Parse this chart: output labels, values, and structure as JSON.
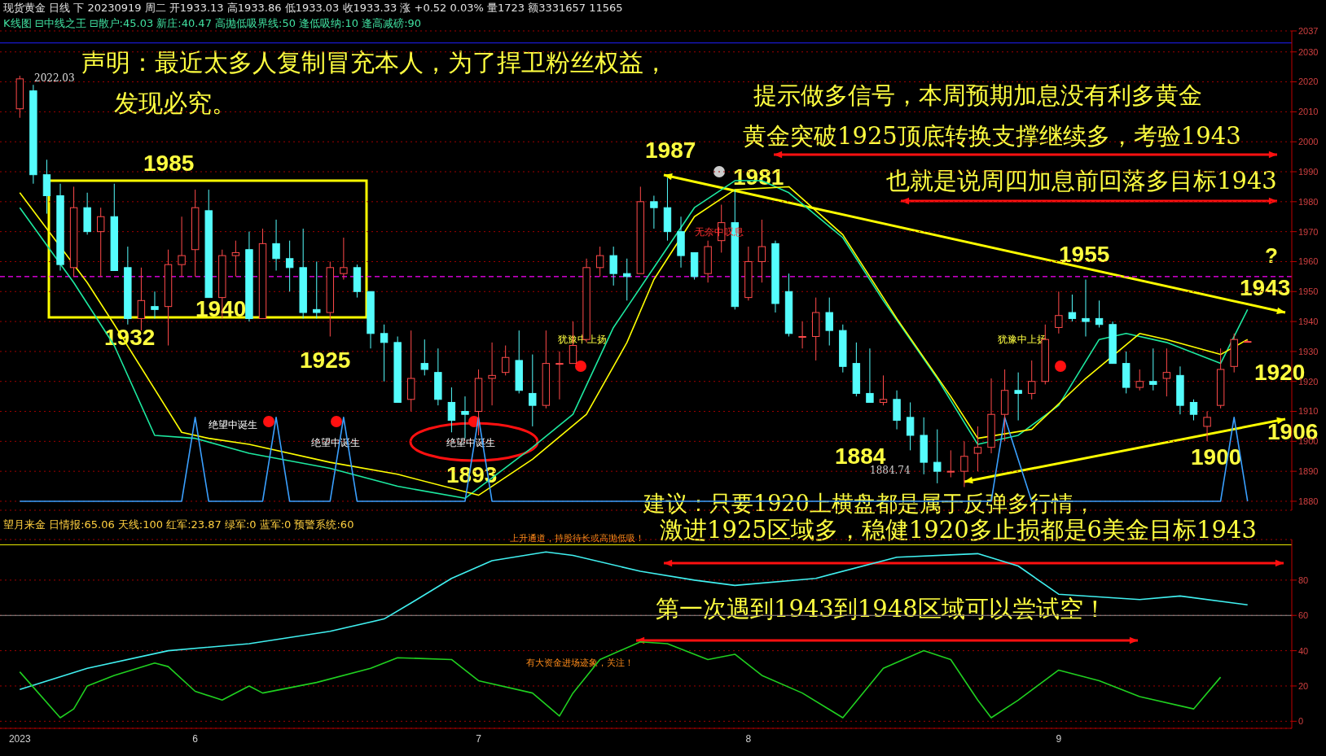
{
  "chart_data": [
    {
      "type": "candlestick",
      "title": "现货黄金 日线 下 20230919 周二 开1933.13 高1933.86 低1933.03 收1933.33 涨 +0.52 0.03% 量1723 额3331657 11565",
      "subtitle": "K线图 ⊟中线之王 ⊟散户:45.03 新庄:40.47 高抛低吸界线:50 逢低吸纳:10 逢高减磅:90",
      "categories": [
        null,
        null,
        null,
        null,
        null,
        null,
        null,
        null,
        null,
        null,
        null,
        null,
        null,
        null,
        null,
        null,
        null,
        null,
        null,
        null,
        null,
        null,
        null,
        null,
        null,
        null,
        null,
        null,
        null,
        null,
        null,
        null,
        null,
        null,
        null,
        null,
        null,
        null,
        null,
        null,
        null,
        null,
        null,
        null,
        null,
        null,
        null,
        null,
        null,
        null,
        null,
        null,
        null,
        null,
        null,
        null,
        null,
        null,
        null,
        null,
        null,
        null,
        null,
        null,
        null,
        null,
        null,
        null,
        null,
        null,
        null,
        null,
        null,
        null,
        null,
        null,
        null,
        null,
        null,
        null,
        null,
        null,
        null,
        null,
        null,
        null,
        null,
        null,
        null,
        null,
        null,
        null
      ],
      "ohlc": [
        [
          2011,
          2022.03,
          2008,
          2021
        ],
        [
          2017,
          2019,
          1986,
          1989
        ],
        [
          1989,
          1994,
          1976,
          1982
        ],
        [
          1982,
          1986,
          1957,
          1959
        ],
        [
          1958,
          1985,
          1955,
          1978
        ],
        [
          1978,
          1983,
          1969,
          1970
        ],
        [
          1970,
          1978,
          1955,
          1975
        ],
        [
          1975,
          1986,
          1957,
          1957
        ],
        [
          1958,
          1965,
          1939,
          1941
        ],
        [
          1941,
          1958,
          1937,
          1947
        ],
        [
          1945,
          1950,
          1941,
          1944
        ],
        [
          1945,
          1964,
          1932,
          1959
        ],
        [
          1959,
          1975,
          1955,
          1962
        ],
        [
          1964,
          1984,
          1955,
          1978
        ],
        [
          1977,
          1984,
          1948,
          1948
        ],
        [
          1948,
          1964,
          1941,
          1962
        ],
        [
          1962,
          1967,
          1955,
          1963
        ],
        [
          1964,
          1970,
          1940,
          1941
        ],
        [
          1941,
          1971,
          1941,
          1966
        ],
        [
          1966,
          1974,
          1957,
          1961
        ],
        [
          1961,
          1967,
          1950,
          1958
        ],
        [
          1958,
          1971,
          1941,
          1943
        ],
        [
          1944,
          1960,
          1941,
          1943
        ],
        [
          1943,
          1960,
          1935,
          1958
        ],
        [
          1956,
          1968,
          1954,
          1958
        ],
        [
          1958,
          1959,
          1948,
          1950
        ],
        [
          1950,
          1950,
          1931,
          1936
        ],
        [
          1936,
          1939,
          1920,
          1933
        ],
        [
          1933,
          1935,
          1913,
          1913
        ],
        [
          1914,
          1937,
          1910,
          1921
        ],
        [
          1926,
          1934,
          1922,
          1924
        ],
        [
          1923,
          1931,
          1912,
          1914
        ],
        [
          1913,
          1918,
          1903,
          1907
        ],
        [
          1910,
          1915,
          1901,
          1909
        ],
        [
          1910,
          1924,
          1902,
          1921
        ],
        [
          1921,
          1933,
          1912,
          1922
        ],
        [
          1923,
          1932,
          1922,
          1928
        ],
        [
          1927,
          1937,
          1916,
          1917
        ],
        [
          1916,
          1929,
          1905,
          1912
        ],
        [
          1912,
          1937,
          1911,
          1926
        ],
        [
          1926,
          1930,
          1914,
          1926
        ],
        [
          1926,
          1940,
          1926,
          1932
        ],
        [
          1934,
          1961,
          1933,
          1958
        ],
        [
          1958,
          1965,
          1955,
          1962
        ],
        [
          1962,
          1965,
          1952,
          1956
        ],
        [
          1956,
          1961,
          1947,
          1955
        ],
        [
          1956,
          1985,
          1956,
          1980
        ],
        [
          1980,
          1982,
          1971,
          1978
        ],
        [
          1978,
          1988,
          1967,
          1970
        ],
        [
          1970,
          1975,
          1958,
          1962
        ],
        [
          1963,
          1963,
          1954,
          1955
        ],
        [
          1956,
          1967,
          1953,
          1965
        ],
        [
          1967,
          1979,
          1963,
          1973
        ],
        [
          1973,
          1984,
          1944,
          1945
        ],
        [
          1948,
          1965,
          1947,
          1960
        ],
        [
          1960,
          1974,
          1953,
          1965
        ],
        [
          1966,
          1967,
          1943,
          1946
        ],
        [
          1950,
          1956,
          1935,
          1936
        ],
        [
          1935,
          1940,
          1931,
          1935
        ],
        [
          1935,
          1948,
          1927,
          1943
        ],
        [
          1943,
          1948,
          1932,
          1937
        ],
        [
          1937,
          1939,
          1923,
          1925
        ],
        [
          1926,
          1933,
          1915,
          1916
        ],
        [
          1916,
          1931,
          1913,
          1913
        ],
        [
          1913,
          1922,
          1912,
          1914
        ],
        [
          1914,
          1917,
          1904,
          1907
        ],
        [
          1908,
          1913,
          1897,
          1902
        ],
        [
          1902,
          1908,
          1889,
          1893
        ],
        [
          1893,
          1904,
          1886,
          1890
        ],
        [
          1890,
          1897,
          1888,
          1890
        ],
        [
          1890,
          1900,
          1884.74,
          1895
        ],
        [
          1896,
          1905,
          1890,
          1898
        ],
        [
          1898,
          1921,
          1896,
          1909
        ],
        [
          1909,
          1924,
          1900,
          1917
        ],
        [
          1917,
          1923,
          1907,
          1916
        ],
        [
          1916,
          1927,
          1914,
          1920
        ],
        [
          1920,
          1939,
          1919,
          1934
        ],
        [
          1938,
          1950,
          1936,
          1942
        ],
        [
          1943,
          1949,
          1940,
          1941
        ],
        [
          1941,
          1954,
          1935,
          1940
        ],
        [
          1941,
          1947,
          1938,
          1939
        ],
        [
          1939,
          1940,
          1926,
          1926
        ],
        [
          1926,
          1930,
          1916,
          1918
        ],
        [
          1918,
          1924,
          1917,
          1920
        ],
        [
          1920,
          1931,
          1917,
          1919
        ],
        [
          1921,
          1931,
          1915,
          1923
        ],
        [
          1922,
          1925,
          1909,
          1912
        ],
        [
          1913,
          1914,
          1907,
          1909
        ],
        [
          1905,
          1910,
          1900,
          1908
        ],
        [
          1912,
          1931,
          1911,
          1924
        ],
        [
          1925,
          1936,
          1923,
          1934
        ],
        [
          1933.13,
          1933.86,
          1933.03,
          1933.33
        ]
      ],
      "series": [
        {
          "type": "line",
          "color": "#1de9a0",
          "values": [
            1978,
            null,
            null,
            null,
            1953,
            null,
            null,
            1932,
            null,
            null,
            1902,
            null,
            null,
            1901,
            null,
            null,
            null,
            1896,
            null,
            null,
            null,
            null,
            null,
            1891,
            null,
            null,
            null,
            null,
            1885,
            null,
            null,
            null,
            null,
            1881,
            null,
            null,
            null,
            null,
            1898,
            null,
            null,
            1909,
            null,
            null,
            1938,
            null,
            null,
            1958,
            null,
            null,
            1978,
            null,
            null,
            1987,
            null,
            1987,
            null,
            1983,
            null,
            null,
            null,
            1968,
            null,
            null,
            1947,
            null,
            null,
            null,
            1921,
            null,
            null,
            1899,
            null,
            null,
            1902,
            null,
            null,
            1912,
            null,
            null,
            1934,
            null,
            1936,
            null,
            null,
            1933,
            null,
            null,
            null,
            1926,
            null,
            1944
          ]
        },
        {
          "type": "line",
          "color": "#ffff00",
          "values": [
            1983,
            null,
            null,
            null,
            null,
            1953,
            null,
            1939,
            null,
            null,
            null,
            null,
            1903,
            null,
            1901,
            null,
            null,
            1899,
            null,
            null,
            null,
            null,
            null,
            1893,
            null,
            null,
            null,
            null,
            1889,
            null,
            null,
            null,
            null,
            null,
            1882,
            null,
            null,
            null,
            1894,
            null,
            null,
            null,
            1909,
            null,
            null,
            1933,
            null,
            1954,
            null,
            null,
            1975,
            null,
            null,
            1984,
            null,
            null,
            null,
            1985,
            null,
            null,
            null,
            1969,
            null,
            null,
            null,
            1941,
            null,
            null,
            null,
            1915,
            null,
            1901,
            null,
            null,
            null,
            1904,
            null,
            null,
            null,
            1921,
            null,
            null,
            null,
            1936,
            null,
            1934,
            null,
            null,
            null,
            1929,
            null,
            1934
          ]
        },
        {
          "type": "line",
          "color": "#3aa0ff",
          "values": [
            1880,
            1880,
            1880,
            1880,
            1880,
            1880,
            1880,
            1880,
            1880,
            1880,
            1880,
            1880,
            1880,
            1908,
            1880,
            1880,
            1880,
            1880,
            1880,
            1908,
            1880,
            1880,
            1880,
            1880,
            1908,
            1880,
            1880,
            1880,
            1880,
            1880,
            1880,
            1880,
            1880,
            1880,
            1908,
            1880,
            1880,
            1880,
            1880,
            1880,
            1880,
            1880,
            1880,
            1880,
            1880,
            1880,
            1880,
            1880,
            1880,
            1880,
            1880,
            1880,
            1880,
            1880,
            1880,
            1880,
            1880,
            1880,
            1880,
            1880,
            1880,
            1880,
            1880,
            1880,
            1880,
            1880,
            1880,
            1880,
            1880,
            null,
            1880,
            1880,
            1880,
            1908,
            null,
            1880,
            1880,
            1880,
            1880,
            1880,
            1880,
            1880,
            1880,
            1880,
            1880,
            1880,
            1880,
            1880,
            1880,
            1880,
            1908,
            1880
          ]
        }
      ],
      "ylim": [
        1877,
        2037
      ],
      "yticks": [
        1880,
        1890,
        1900,
        1910,
        1920,
        1930,
        1940,
        1950,
        1960,
        1970,
        1980,
        1990,
        2000,
        2010,
        2020,
        2030,
        2037
      ],
      "grid": "y",
      "tick_labels": "y",
      "ref_lines": [
        {
          "axis": "y",
          "value": 1955,
          "color": "#ff00ff",
          "line_style": "dashed"
        },
        {
          "axis": "y",
          "value": 2033,
          "color": "#2020ff",
          "line_style": "solid"
        }
      ],
      "annotations": [
        "声明：最近太多人复制冒充本人，为了捍卫粉丝权益，",
        "发现必究。",
        "2022.03",
        "1985",
        "1932",
        "1940",
        "1925",
        "绝望中诞生",
        "绝望中诞生",
        "绝望中诞生",
        "1893",
        "提示做多信号，本周预期加息没有利多黄金",
        "黄金突破1925顶底转换支撑继续多，考验1943",
        "也就是说周四加息前回落多目标1943",
        "1987",
        "1981",
        "无奈中叹息",
        "犹豫中上扬",
        "犹豫中上扬",
        "1955",
        "?",
        "1943",
        "1920",
        "1906",
        "1900",
        "1884",
        "1884.74",
        "建议：只要1920上横盘都是属于反弹多行情，"
      ]
    },
    {
      "type": "line",
      "title": "望月来金 日情报:65.06 天线:100 红军:23.87 绿军:0 蓝军:0 预警系统:60",
      "categories": [
        "2023",
        null,
        null,
        null,
        null,
        null,
        null,
        null,
        null,
        null,
        null,
        null,
        null,
        "6",
        null,
        null,
        null,
        null,
        null,
        null,
        null,
        null,
        null,
        null,
        null,
        null,
        null,
        null,
        null,
        null,
        null,
        null,
        null,
        null,
        "7",
        null,
        null,
        null,
        null,
        null,
        null,
        null,
        null,
        null,
        null,
        null,
        null,
        null,
        null,
        null,
        null,
        null,
        null,
        null,
        "8",
        null,
        null,
        null,
        null,
        null,
        null,
        null,
        null,
        null,
        null,
        null,
        null,
        null,
        null,
        null,
        null,
        null,
        null,
        null,
        null,
        null,
        null,
        "9",
        null,
        null,
        null,
        null,
        null,
        null,
        null,
        null,
        null,
        null,
        null,
        null,
        null,
        null
      ],
      "series": [
        {
          "type": "line",
          "color": "#40f0f0",
          "values": [
            18,
            null,
            null,
            null,
            null,
            30,
            null,
            null,
            null,
            null,
            null,
            40,
            null,
            null,
            null,
            null,
            null,
            44,
            null,
            null,
            null,
            null,
            null,
            51,
            null,
            null,
            null,
            58,
            null,
            67,
            null,
            null,
            81,
            null,
            null,
            91,
            null,
            null,
            null,
            96,
            null,
            94,
            null,
            null,
            null,
            null,
            85,
            null,
            null,
            null,
            80,
            null,
            null,
            77,
            null,
            null,
            null,
            null,
            null,
            81,
            null,
            null,
            null,
            null,
            null,
            93,
            null,
            null,
            null,
            null,
            null,
            95,
            null,
            null,
            88,
            null,
            null,
            72,
            null,
            null,
            null,
            null,
            null,
            69,
            null,
            null,
            71,
            null,
            null,
            null,
            null,
            66
          ]
        },
        {
          "type": "line",
          "color": "#20d020",
          "values": [
            28,
            null,
            null,
            2,
            7,
            20,
            null,
            26,
            null,
            null,
            33,
            31,
            null,
            17,
            null,
            12,
            null,
            20,
            16,
            null,
            null,
            null,
            22,
            null,
            null,
            null,
            30,
            null,
            36,
            null,
            null,
            null,
            35,
            null,
            23,
            null,
            null,
            null,
            16,
            null,
            3,
            16,
            null,
            35,
            null,
            null,
            45,
            null,
            44,
            null,
            null,
            35,
            null,
            38,
            null,
            26,
            null,
            null,
            16,
            null,
            null,
            2,
            null,
            null,
            30,
            null,
            null,
            40,
            null,
            35,
            null,
            12,
            2,
            null,
            12,
            null,
            null,
            29,
            null,
            null,
            23,
            null,
            null,
            14,
            null,
            null,
            null,
            7,
            null,
            25,
            null,
            null
          ]
        }
      ],
      "ylim": [
        -4,
        103
      ],
      "yticks": [
        0,
        20,
        40,
        60,
        80
      ],
      "grid": "y",
      "ref_lines": [
        {
          "axis": "y",
          "value": 100,
          "color": "#e8e800",
          "line_style": "solid"
        },
        {
          "axis": "y",
          "value": 60,
          "color": "#909090",
          "line_style": "solid"
        }
      ],
      "annotations": [
        "激进1925区域多，稳健1920多止损都是6美金目标1943",
        "第一次遇到1943到1948区域可以尝试空！",
        "上升通道，持股待长或高抛低吸！",
        "有大资金进场迹象，关注！"
      ]
    }
  ]
}
